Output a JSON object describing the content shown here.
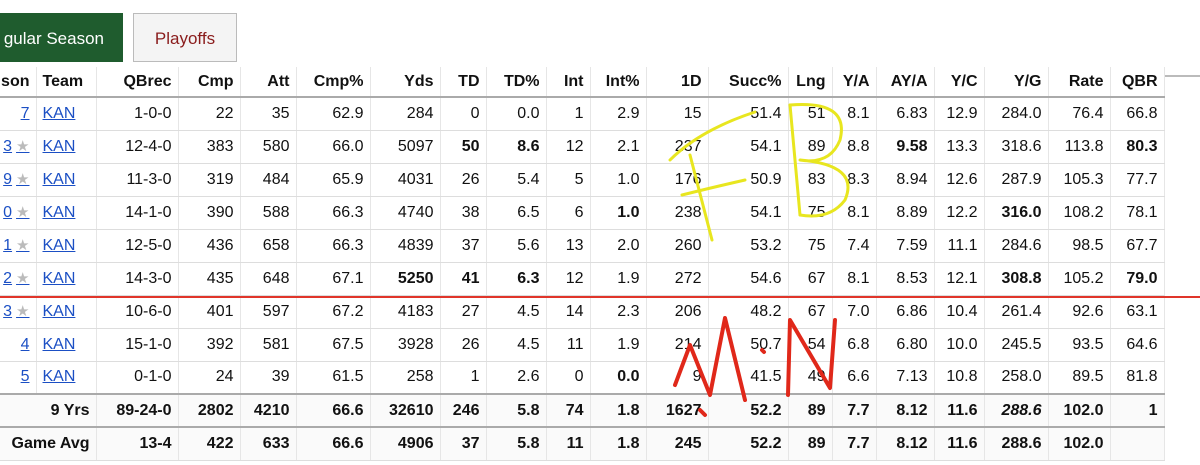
{
  "tabs": {
    "regular": "gular Season",
    "playoffs": "Playoffs"
  },
  "headers": [
    "son",
    "Team",
    "QBrec",
    "Cmp",
    "Att",
    "Cmp%",
    "Yds",
    "TD",
    "TD%",
    "Int",
    "Int%",
    "1D",
    "Succ%",
    "Lng",
    "Y/A",
    "AY/A",
    "Y/C",
    "Y/G",
    "Rate",
    "QBR"
  ],
  "rows": [
    {
      "season": "7",
      "star": false,
      "team": "KAN",
      "cells": [
        "1-0-0",
        "22",
        "35",
        "62.9",
        "284",
        "0",
        "0.0",
        "1",
        "2.9",
        "15",
        "51.4",
        "51",
        "8.1",
        "6.83",
        "12.9",
        "284.0",
        "76.4",
        "66.8"
      ],
      "bold": []
    },
    {
      "season": "3",
      "star": true,
      "team": "KAN",
      "cells": [
        "12-4-0",
        "383",
        "580",
        "66.0",
        "5097",
        "50",
        "8.6",
        "12",
        "2.1",
        "237",
        "54.1",
        "89",
        "8.8",
        "9.58",
        "13.3",
        "318.6",
        "113.8",
        "80.3"
      ],
      "bold": [
        5,
        6,
        13,
        17
      ]
    },
    {
      "season": "9",
      "star": true,
      "team": "KAN",
      "cells": [
        "11-3-0",
        "319",
        "484",
        "65.9",
        "4031",
        "26",
        "5.4",
        "5",
        "1.0",
        "176",
        "50.9",
        "83",
        "8.3",
        "8.94",
        "12.6",
        "287.9",
        "105.3",
        "77.7"
      ],
      "bold": []
    },
    {
      "season": "0",
      "star": true,
      "team": "KAN",
      "cells": [
        "14-1-0",
        "390",
        "588",
        "66.3",
        "4740",
        "38",
        "6.5",
        "6",
        "1.0",
        "238",
        "54.1",
        "75",
        "8.1",
        "8.89",
        "12.2",
        "316.0",
        "108.2",
        "78.1"
      ],
      "bold": [
        8,
        15
      ]
    },
    {
      "season": "1",
      "star": true,
      "team": "KAN",
      "cells": [
        "12-5-0",
        "436",
        "658",
        "66.3",
        "4839",
        "37",
        "5.6",
        "13",
        "2.0",
        "260",
        "53.2",
        "75",
        "7.4",
        "7.59",
        "11.1",
        "284.6",
        "98.5",
        "67.7"
      ],
      "bold": []
    },
    {
      "season": "2",
      "star": true,
      "team": "KAN",
      "cells": [
        "14-3-0",
        "435",
        "648",
        "67.1",
        "5250",
        "41",
        "6.3",
        "12",
        "1.9",
        "272",
        "54.6",
        "67",
        "8.1",
        "8.53",
        "12.1",
        "308.8",
        "105.2",
        "79.0"
      ],
      "bold": [
        4,
        5,
        6,
        15,
        17
      ]
    },
    {
      "season": "3",
      "star": true,
      "team": "KAN",
      "cells": [
        "10-6-0",
        "401",
        "597",
        "67.2",
        "4183",
        "27",
        "4.5",
        "14",
        "2.3",
        "206",
        "48.2",
        "67",
        "7.0",
        "6.86",
        "10.4",
        "261.4",
        "92.6",
        "63.1"
      ],
      "bold": []
    },
    {
      "season": "4",
      "star": false,
      "team": "KAN",
      "cells": [
        "15-1-0",
        "392",
        "581",
        "67.5",
        "3928",
        "26",
        "4.5",
        "11",
        "1.9",
        "214",
        "50.7",
        "54",
        "6.8",
        "6.80",
        "10.0",
        "245.5",
        "93.5",
        "64.6"
      ],
      "bold": []
    },
    {
      "season": "5",
      "star": false,
      "team": "KAN",
      "cells": [
        "0-1-0",
        "24",
        "39",
        "61.5",
        "258",
        "1",
        "2.6",
        "0",
        "0.0",
        "9",
        "41.5",
        "49",
        "6.6",
        "7.13",
        "10.8",
        "258.0",
        "89.5",
        "81.8"
      ],
      "bold": [
        8
      ]
    }
  ],
  "totals": [
    {
      "label": "9 Yrs",
      "cells": [
        "89-24-0",
        "2802",
        "4210",
        "66.6",
        "32610",
        "246",
        "5.8",
        "74",
        "1.8",
        "1627",
        "52.2",
        "89",
        "7.7",
        "8.12",
        "11.6",
        "288.6",
        "102.0",
        ""
      ],
      "extra": "1"
    },
    {
      "label": "Game Avg",
      "cells": [
        "13-4",
        "422",
        "633",
        "66.6",
        "4906",
        "37",
        "5.8",
        "11",
        "1.8",
        "245",
        "52.2",
        "89",
        "7.7",
        "8.12",
        "11.6",
        "288.6",
        "102.0",
        ""
      ],
      "extra": ""
    }
  ],
  "annotations": {
    "top_handwriting": "F B",
    "bottom_handwriting": "M N"
  },
  "colors": {
    "tab_active": "#1f5c2e",
    "tab_inactive_text": "#8a1c1c",
    "link": "#1b4fc4",
    "highlight": "#f6d94a",
    "pen_yellow": "#e8e61f",
    "pen_red": "#e0281a",
    "divider_red": "#e0352a"
  }
}
